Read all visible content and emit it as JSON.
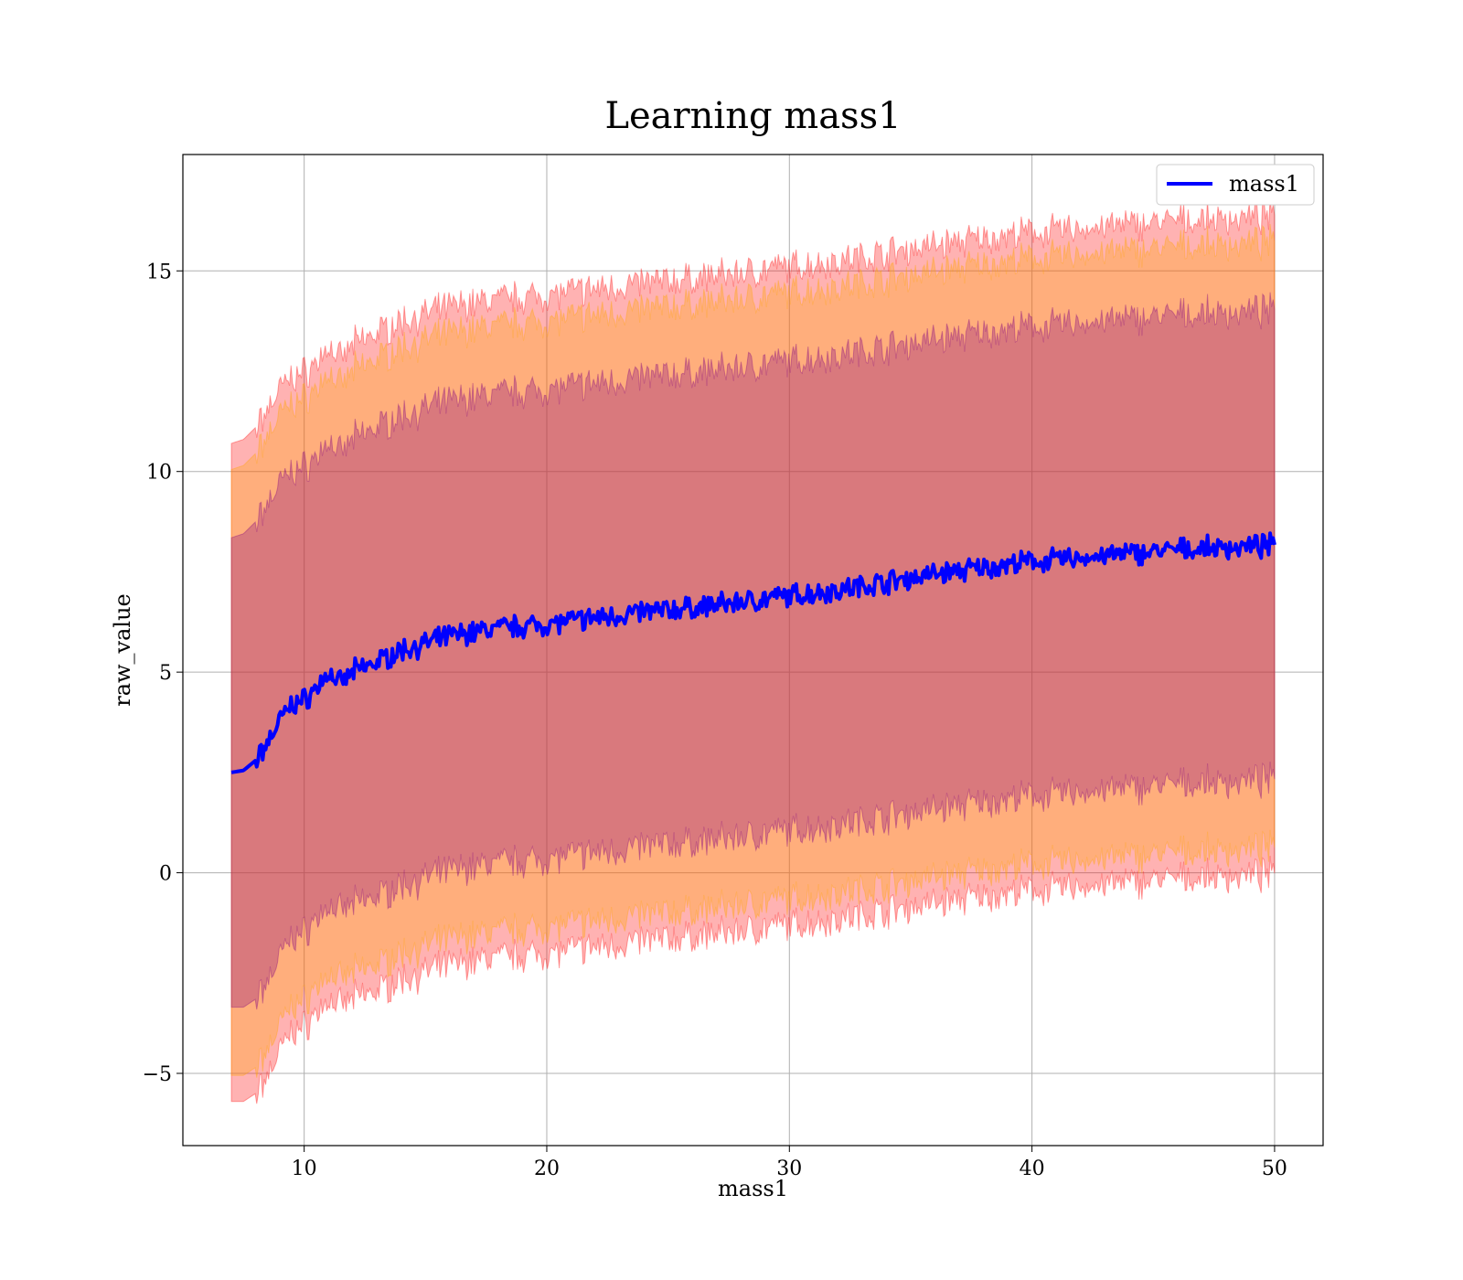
{
  "chart_data": {
    "type": "line",
    "title": "Learning mass1",
    "xlabel": "mass1",
    "ylabel": "raw_value",
    "xlim": [
      5,
      52
    ],
    "ylim": [
      -6.8,
      17.9
    ],
    "xticks": [
      10,
      20,
      30,
      40,
      50
    ],
    "yticks": [
      -5,
      0,
      5,
      10,
      15
    ],
    "grid": true,
    "legend": {
      "placement": "top-right",
      "entries": [
        "mass1"
      ]
    },
    "colors": {
      "line": "#0000ff",
      "band_outer": "#ff0000",
      "band_middle": "#ffa500",
      "band_inner": "#800080"
    },
    "x": [
      7,
      7.5,
      8,
      8.5,
      9,
      9.5,
      10,
      10.5,
      11,
      11.5,
      12,
      13,
      14,
      15,
      16,
      17,
      18,
      19,
      20,
      22,
      24,
      26,
      28,
      30,
      32,
      34,
      36,
      38,
      40,
      42,
      44,
      46,
      48,
      50
    ],
    "series": [
      {
        "name": "mass1",
        "values": [
          2.5,
          2.55,
          2.8,
          3.25,
          3.8,
          4.2,
          4.3,
          4.6,
          5.0,
          4.7,
          5.0,
          5.25,
          5.55,
          5.7,
          5.9,
          6.0,
          6.1,
          6.15,
          6.2,
          6.35,
          6.5,
          6.6,
          6.75,
          6.9,
          7.05,
          7.25,
          7.45,
          7.6,
          7.75,
          7.85,
          7.95,
          8.05,
          8.1,
          8.15
        ]
      },
      {
        "name": "",
        "role": "inner band upper",
        "values": [
          8.35,
          8.45,
          8.75,
          9.2,
          9.7,
          10.0,
          10.1,
          10.35,
          10.8,
          10.4,
          10.8,
          11.1,
          11.4,
          11.55,
          11.75,
          11.85,
          11.95,
          12.0,
          12.05,
          12.2,
          12.35,
          12.45,
          12.6,
          12.75,
          12.9,
          13.1,
          13.3,
          13.45,
          13.6,
          13.7,
          13.8,
          13.9,
          13.95,
          14.0
        ]
      },
      {
        "name": "",
        "role": "inner band lower",
        "values": [
          -3.35,
          -3.35,
          -3.15,
          -2.7,
          -2.1,
          -1.6,
          -1.5,
          -1.15,
          -0.8,
          -1.0,
          -0.8,
          -0.6,
          -0.3,
          -0.15,
          0.05,
          0.15,
          0.25,
          0.3,
          0.35,
          0.5,
          0.65,
          0.75,
          0.9,
          1.05,
          1.2,
          1.4,
          1.6,
          1.75,
          1.9,
          2.0,
          2.1,
          2.2,
          2.25,
          2.3
        ]
      },
      {
        "name": "",
        "role": "middle band upper",
        "values": [
          10.05,
          10.15,
          10.45,
          10.9,
          11.4,
          11.7,
          11.8,
          12.05,
          12.5,
          12.1,
          12.5,
          12.8,
          13.1,
          13.25,
          13.45,
          13.55,
          13.65,
          13.7,
          13.75,
          13.9,
          14.05,
          14.15,
          14.3,
          14.45,
          14.6,
          14.8,
          15.0,
          15.15,
          15.3,
          15.4,
          15.5,
          15.6,
          15.65,
          15.7
        ]
      },
      {
        "name": "",
        "role": "middle band lower",
        "values": [
          -5.05,
          -5.05,
          -4.85,
          -4.4,
          -3.8,
          -3.3,
          -3.2,
          -2.85,
          -2.5,
          -2.7,
          -2.5,
          -2.3,
          -2.0,
          -1.85,
          -1.65,
          -1.55,
          -1.45,
          -1.4,
          -1.35,
          -1.2,
          -1.05,
          -0.95,
          -0.8,
          -0.65,
          -0.5,
          -0.3,
          -0.1,
          0.05,
          0.2,
          0.3,
          0.4,
          0.5,
          0.55,
          0.6
        ]
      },
      {
        "name": "",
        "role": "outer band upper",
        "values": [
          10.7,
          10.8,
          11.1,
          11.55,
          12.05,
          12.35,
          12.45,
          12.7,
          13.15,
          12.75,
          13.15,
          13.45,
          13.75,
          13.9,
          14.1,
          14.2,
          14.3,
          14.35,
          14.4,
          14.55,
          14.7,
          14.8,
          14.95,
          15.1,
          15.25,
          15.45,
          15.65,
          15.8,
          15.95,
          16.05,
          16.15,
          16.25,
          16.3,
          16.35
        ]
      },
      {
        "name": "",
        "role": "outer band lower",
        "values": [
          -5.7,
          -5.7,
          -5.5,
          -5.05,
          -4.45,
          -3.95,
          -3.85,
          -3.5,
          -3.15,
          -3.35,
          -3.15,
          -2.95,
          -2.65,
          -2.5,
          -2.3,
          -2.2,
          -2.1,
          -2.05,
          -2.0,
          -1.85,
          -1.7,
          -1.6,
          -1.45,
          -1.3,
          -1.15,
          -0.95,
          -0.75,
          -0.6,
          -0.45,
          -0.35,
          -0.25,
          -0.15,
          -0.1,
          -0.05
        ]
      }
    ]
  }
}
